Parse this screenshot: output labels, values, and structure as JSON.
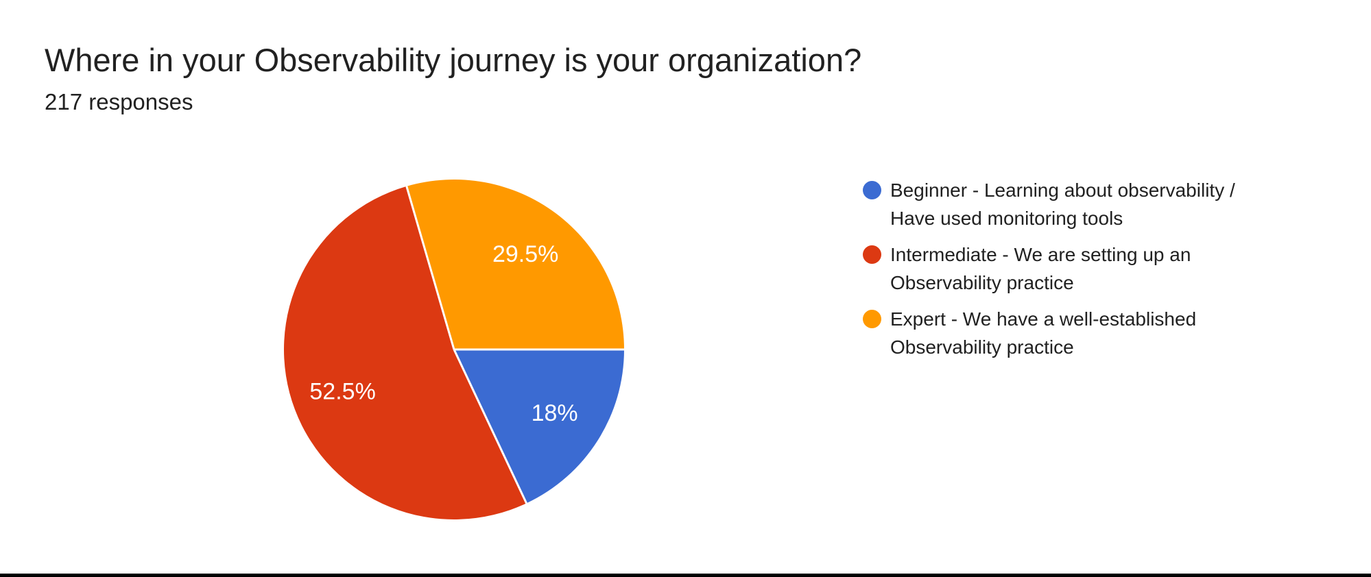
{
  "header": {
    "title": "Where in your Observability journey is your organization?",
    "responses_text": "217 responses"
  },
  "chart_data": {
    "type": "pie",
    "title": "Where in your Observability journey is your organization?",
    "subtitle": "217 responses",
    "total_responses": 217,
    "start_angle_deg": 0,
    "rotation": "clockwise-from-3-oclock",
    "legend_position": "right",
    "label_color": "#ffffff",
    "slice_separator_color": "#ffffff",
    "slices": [
      {
        "label": "Beginner - Learning about observability / Have used monitoring tools",
        "value_pct": 18,
        "display": "18%",
        "color": "#3B6BD2"
      },
      {
        "label": "Intermediate - We are setting up an Observability practice",
        "value_pct": 52.5,
        "display": "52.5%",
        "color": "#DC3912"
      },
      {
        "label": "Expert - We have a well-established Observability practice",
        "value_pct": 29.5,
        "display": "29.5%",
        "color": "#FF9900"
      }
    ]
  },
  "page": {
    "background": "#ffffff",
    "bottom_bar_color": "#000000",
    "text_color": "#212121"
  }
}
